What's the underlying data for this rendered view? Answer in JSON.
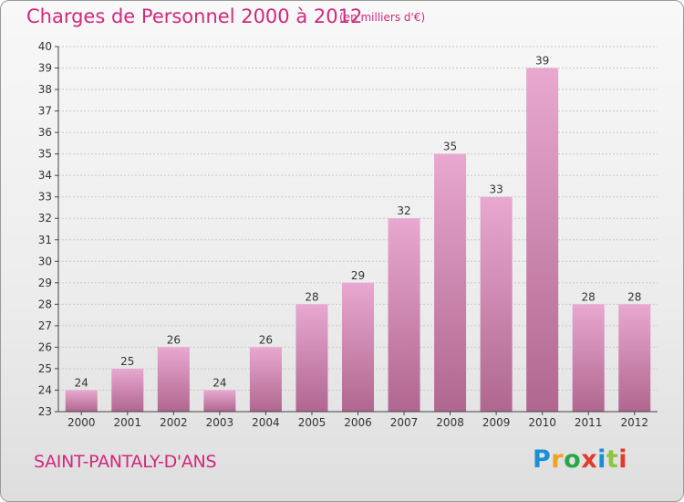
{
  "header": {
    "title": "Charges de Personnel 2000 à 2012",
    "subtitle": "(en milliers d'€)"
  },
  "footer": {
    "place": "SAINT-PANTALY-D'ANS",
    "logo_text": "Proxiti",
    "logo_colors": [
      "#1a8fd6",
      "#f0a020",
      "#2aa64a",
      "#e23a2a",
      "#1a8fd6",
      "#8cc63f",
      "#e23a2a"
    ]
  },
  "colors": {
    "bar_top": "#e8a8d0",
    "bar_bottom": "#b0678f",
    "text_accent": "#d2287d",
    "axis": "#444444",
    "grid": "#c8c8c8"
  },
  "chart_data": {
    "type": "bar",
    "categories": [
      "2000",
      "2001",
      "2002",
      "2003",
      "2004",
      "2005",
      "2006",
      "2007",
      "2008",
      "2009",
      "2010",
      "2011",
      "2012"
    ],
    "values": [
      24,
      25,
      26,
      24,
      26,
      28,
      29,
      32,
      35,
      33,
      39,
      28,
      28
    ],
    "title": "Charges de Personnel 2000 à 2012",
    "subtitle": "(en milliers d'€)",
    "xlabel": "",
    "ylabel": "",
    "ylim": [
      23,
      40
    ],
    "yticks": [
      23,
      24,
      25,
      26,
      27,
      28,
      29,
      30,
      31,
      32,
      33,
      34,
      35,
      36,
      37,
      38,
      39,
      40
    ],
    "grid": true,
    "legend": "none"
  }
}
